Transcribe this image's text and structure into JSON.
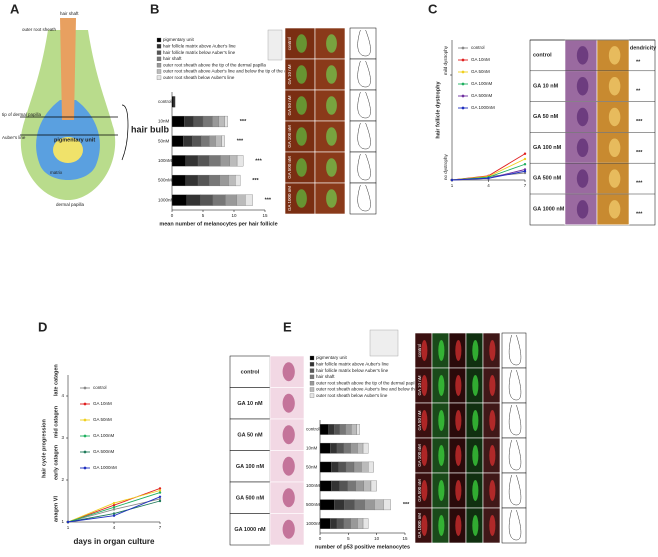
{
  "panel_labels": [
    "A",
    "B",
    "C",
    "D",
    "E"
  ],
  "diagram": {
    "labels": [
      "hair shaft",
      "outer root sheath",
      "tip of dermal papilla",
      "Auber's line",
      "matrix",
      "dermal papilla",
      "pigmentary unit"
    ],
    "bulb_label": "hair bulb"
  },
  "chart_data": [
    {
      "type": "bar",
      "orientation": "horizontal",
      "stacked": true,
      "categories": [
        "control",
        "10nM",
        "50nM",
        "100nM",
        "500nM",
        "1000nM"
      ],
      "series": [
        {
          "name": "pigmentary unit",
          "color": "#000000",
          "values": [
            0.3,
            2,
            1.8,
            2.2,
            2.2,
            2.4
          ]
        },
        {
          "name": "hair follicle matrix above Auber's line",
          "color": "#333333",
          "values": [
            0.2,
            1.5,
            1.5,
            2,
            2,
            2.2
          ]
        },
        {
          "name": "hair follicle matrix below Auber's line",
          "color": "#555555",
          "values": [
            0,
            1.5,
            1.4,
            1.8,
            1.8,
            2
          ]
        },
        {
          "name": "hair shaft",
          "color": "#777777",
          "values": [
            0,
            1.5,
            1.3,
            1.8,
            1.7,
            2
          ]
        },
        {
          "name": "outer root sheath above the tip of the dermal papilla",
          "color": "#999999",
          "values": [
            0,
            1,
            1,
            1.5,
            1.4,
            1.8
          ]
        },
        {
          "name": "outer root sheath above Auber's line and below the tip of the dermal papilla",
          "color": "#bbbbbb",
          "values": [
            0,
            1,
            1,
            1.2,
            1.1,
            1.4
          ]
        },
        {
          "name": "outer root sheath below Auber's line",
          "color": "#e6e6e6",
          "values": [
            0,
            0.5,
            0.5,
            1,
            0.8,
            1.2
          ]
        }
      ],
      "significance": [
        null,
        "***",
        "***",
        "***",
        "***",
        "***"
      ],
      "xlim": [
        0,
        15
      ],
      "xticks": [
        0,
        5,
        10,
        15
      ],
      "xlabel": "mean number of melanocytes per hair follicle"
    },
    {
      "type": "line",
      "x": [
        1,
        4,
        7
      ],
      "series": [
        {
          "name": "control",
          "color": "#888888",
          "values": [
            0,
            0.1,
            0.2
          ]
        },
        {
          "name": "GA 10nM",
          "color": "#e02020",
          "values": [
            0,
            0.12,
            0.75
          ]
        },
        {
          "name": "GA 50nM",
          "color": "#f0d020",
          "values": [
            0,
            0.1,
            0.6
          ]
        },
        {
          "name": "GA 100nM",
          "color": "#20b060",
          "values": [
            0,
            0.08,
            0.45
          ]
        },
        {
          "name": "GA 500nM",
          "color": "#7030a0",
          "values": [
            0,
            0.05,
            0.3
          ]
        },
        {
          "name": "GA 1000nM",
          "color": "#2030c0",
          "values": [
            0,
            0.05,
            0.25
          ]
        }
      ],
      "xlim": [
        1,
        7
      ],
      "xticks": [
        1,
        4,
        7
      ],
      "ylim": [
        0,
        4
      ],
      "yticks": [
        {
          "value": 0,
          "label": "no dystrophy"
        },
        {
          "value": 3,
          "label": "mild dystrophy"
        }
      ],
      "ylabel": "hair follicle dystrophy"
    },
    {
      "type": "line",
      "x": [
        1,
        4,
        7
      ],
      "series": [
        {
          "name": "control",
          "color": "#888888",
          "values": [
            1,
            1.3,
            1.55
          ]
        },
        {
          "name": "GA 10nM",
          "color": "#e02020",
          "values": [
            1,
            1.4,
            1.8
          ]
        },
        {
          "name": "GA 50nM",
          "color": "#f0d020",
          "values": [
            1,
            1.45,
            1.75
          ]
        },
        {
          "name": "GA 100nM",
          "color": "#20b060",
          "values": [
            1,
            1.35,
            1.7
          ]
        },
        {
          "name": "GA 500nM",
          "color": "#1f7a5a",
          "values": [
            1,
            1.2,
            1.5
          ]
        },
        {
          "name": "GA 1000nM",
          "color": "#2030c0",
          "values": [
            1,
            1.15,
            1.6
          ]
        }
      ],
      "xlim": [
        1,
        7
      ],
      "xticks": [
        1,
        4,
        7
      ],
      "ylim": [
        1,
        4.5
      ],
      "yticks": [
        1,
        2,
        3,
        4
      ],
      "ylevel_labels": [
        "anagen VI",
        "early catagen",
        "mid catagen",
        "late catagen"
      ],
      "ylabel": "hair cycle progression",
      "xlabel": "days in organ culture"
    },
    {
      "type": "bar",
      "orientation": "horizontal",
      "stacked": true,
      "categories": [
        "control",
        "10nM",
        "50nM",
        "100nM",
        "500nM",
        "1000nM"
      ],
      "series": [
        {
          "name": "pigmentary unit",
          "color": "#000000",
          "values": [
            1.5,
            1.8,
            2,
            2,
            2.5,
            1.8
          ]
        },
        {
          "name": "hair follicle matrix above Auber's line",
          "color": "#333333",
          "values": [
            1,
            1.2,
            1.3,
            1.5,
            1.8,
            1.2
          ]
        },
        {
          "name": "hair follicle matrix below Auber's line",
          "color": "#555555",
          "values": [
            1,
            1.2,
            1.3,
            1.4,
            1.8,
            1.2
          ]
        },
        {
          "name": "hair shaft",
          "color": "#777777",
          "values": [
            1,
            1.2,
            1.4,
            1.4,
            1.8,
            1.2
          ]
        },
        {
          "name": "outer root sheath above the tip of the dermal papilla",
          "color": "#999999",
          "values": [
            1,
            1.2,
            1.3,
            1.4,
            1.7,
            1.2
          ]
        },
        {
          "name": "outer root sheath above Auber's line and below the tip of the dermal papilla",
          "color": "#bbbbbb",
          "values": [
            1,
            1,
            1.2,
            1.3,
            1.6,
            1
          ]
        },
        {
          "name": "outer root sheath below Auber's line",
          "color": "#e6e6e6",
          "values": [
            0.5,
            0.9,
            1,
            1,
            1.3,
            0.9
          ]
        }
      ],
      "significance": [
        null,
        null,
        null,
        null,
        "***",
        null
      ],
      "xlim": [
        0,
        15
      ],
      "xticks": [
        0,
        5,
        10,
        15
      ],
      "xlabel": "number of p53 positive melanocytes"
    }
  ],
  "micrographs": {
    "B": [
      "control",
      "GA 10 nM",
      "GA 50 nM",
      "GA 100 nM",
      "GA 500 nM",
      "GA 1000 nM"
    ],
    "C": {
      "header": "dendricity",
      "rows": [
        "control",
        "GA 10 nM",
        "GA 50 nM",
        "GA 100 nM",
        "GA 500 nM",
        "GA 1000 nM"
      ],
      "scores": [
        "**",
        "**",
        "***",
        "***",
        "***",
        "***"
      ]
    },
    "D": [
      "control",
      "GA 10 nM",
      "GA 50 nM",
      "GA 100 nM",
      "GA 500 nM",
      "GA 1000 nM"
    ],
    "E": [
      "control",
      "GA 10 nM",
      "GA 50 nM",
      "GA 100 nM",
      "GA 500 nM",
      "GA 1000 nM"
    ]
  }
}
